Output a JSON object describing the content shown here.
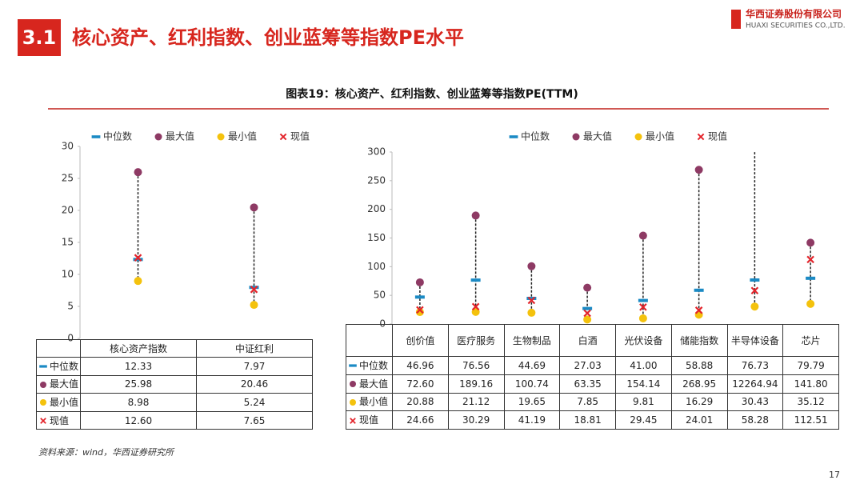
{
  "header": {
    "section": "3.1",
    "title": "核心资产、红利指数、创业蓝筹等指数PE水平",
    "logo_cn": "华西证券股份有限公司",
    "logo_en": "HUAXI SECURITIES CO.,LTD."
  },
  "figure_title": "图表19：核心资产、红利指数、创业蓝筹等指数PE(TTM)",
  "chart_data": [
    {
      "type": "dotrange",
      "categories": [
        "核心资产指数",
        "中证红利"
      ],
      "series": [
        {
          "name": "中位数",
          "color": "#1b8ac4",
          "marker": "bar",
          "values": [
            12.33,
            7.97
          ],
          "value_labels": [
            "12.33",
            "7.97"
          ]
        },
        {
          "name": "最大值",
          "color": "#8e3a64",
          "marker": "circle",
          "values": [
            25.98,
            20.46
          ],
          "value_labels": [
            "25.98",
            "20.46"
          ]
        },
        {
          "name": "最小值",
          "color": "#f4c20d",
          "marker": "circle",
          "values": [
            8.98,
            5.24
          ],
          "value_labels": [
            "8.98",
            "5.24"
          ]
        },
        {
          "name": "现值",
          "color": "#e3242b",
          "marker": "x",
          "values": [
            12.6,
            7.65
          ],
          "value_labels": [
            "12.60",
            "7.65"
          ]
        }
      ],
      "ylim": [
        0,
        30
      ],
      "yticks": [
        0,
        5,
        10,
        15,
        20,
        25,
        30
      ]
    },
    {
      "type": "dotrange",
      "categories": [
        "创价值",
        "医疗服务",
        "生物制品",
        "白酒",
        "光伏设备",
        "储能指数",
        "半导体设备",
        "芯片"
      ],
      "series": [
        {
          "name": "中位数",
          "color": "#1b8ac4",
          "marker": "bar",
          "values": [
            46.96,
            76.56,
            44.69,
            27.03,
            41.0,
            58.88,
            76.73,
            79.79
          ],
          "value_labels": [
            "46.96",
            "76.56",
            "44.69",
            "27.03",
            "41.00",
            "58.88",
            "76.73",
            "79.79"
          ]
        },
        {
          "name": "最大值",
          "color": "#8e3a64",
          "marker": "circle",
          "values": [
            72.6,
            189.16,
            100.74,
            63.35,
            154.14,
            268.95,
            12264.94,
            141.8
          ],
          "value_labels": [
            "72.60",
            "189.16",
            "100.74",
            "63.35",
            "154.14",
            "268.95",
            "12264.94",
            "141.80"
          ]
        },
        {
          "name": "最小值",
          "color": "#f4c20d",
          "marker": "circle",
          "values": [
            20.88,
            21.12,
            19.65,
            7.85,
            9.81,
            16.29,
            30.43,
            35.12
          ],
          "value_labels": [
            "20.88",
            "21.12",
            "19.65",
            "7.85",
            "9.81",
            "16.29",
            "30.43",
            "35.12"
          ]
        },
        {
          "name": "现值",
          "color": "#e3242b",
          "marker": "x",
          "values": [
            24.66,
            30.29,
            41.19,
            18.81,
            29.45,
            24.01,
            58.28,
            112.51
          ],
          "value_labels": [
            "24.66",
            "30.29",
            "41.19",
            "18.81",
            "29.45",
            "24.01",
            "58.28",
            "112.51"
          ]
        }
      ],
      "ylim": [
        0,
        300
      ],
      "yticks": [
        0,
        50,
        100,
        150,
        200,
        250,
        300
      ]
    }
  ],
  "source": "资料来源：wind，华西证券研究所",
  "page": "17"
}
